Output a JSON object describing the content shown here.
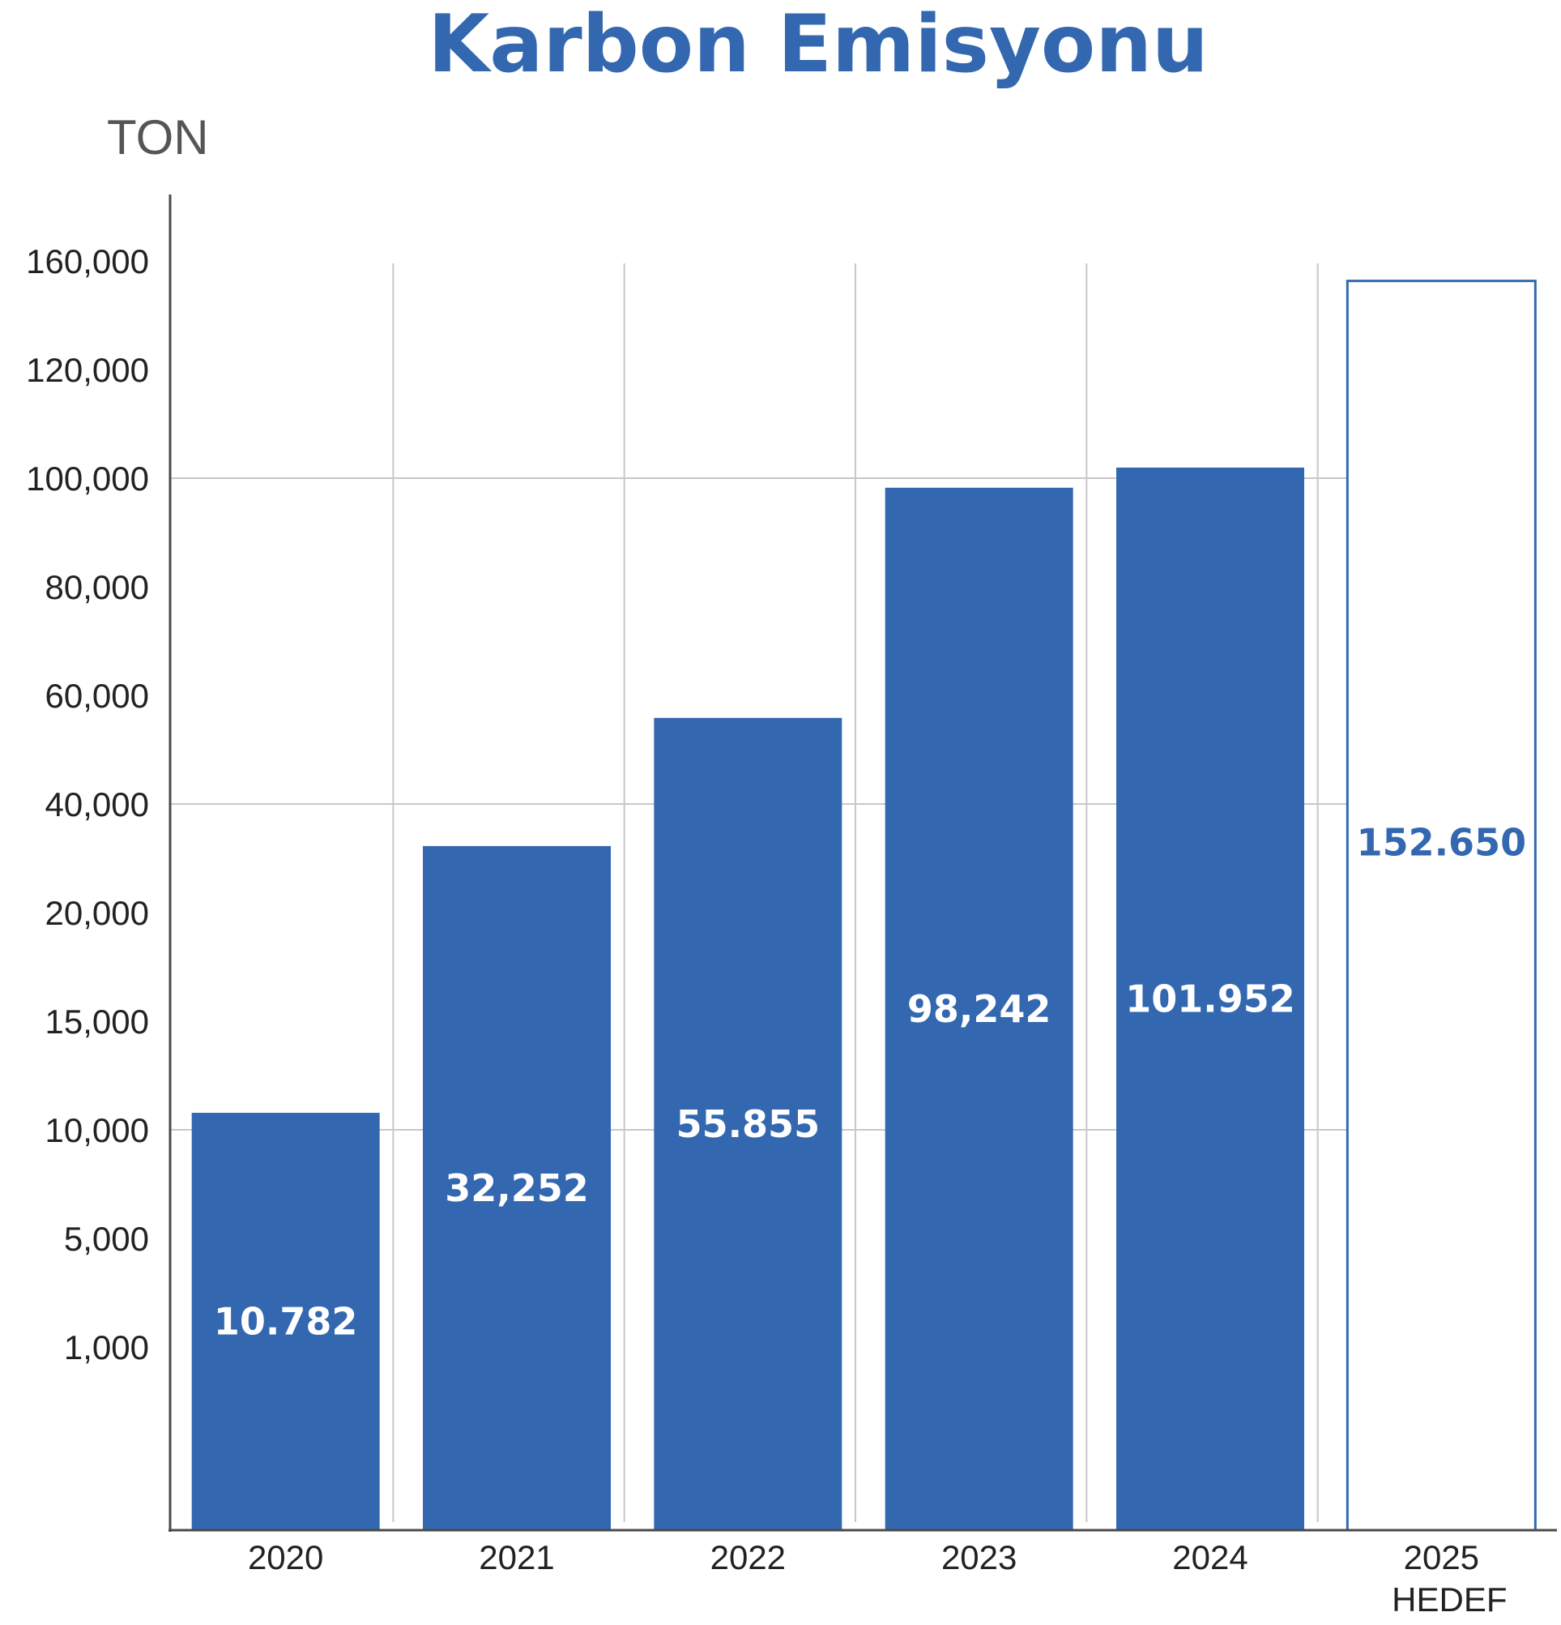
{
  "chart_data": {
    "type": "bar",
    "title": "Karbon Emisyonu",
    "ylabel": "TON",
    "y_ticks": [
      "160,000",
      "120,000",
      "100,000",
      "80,000",
      "60,000",
      "40,000",
      "20,000",
      "15,000",
      "10,000",
      "5,000",
      "1,000"
    ],
    "categories": [
      "2020",
      "2021",
      "2022",
      "2023",
      "2024",
      "2025"
    ],
    "category_sublabels": [
      "",
      "",
      "",
      "",
      "",
      "HEDEF"
    ],
    "values": [
      10782,
      32252,
      55855,
      98242,
      101952,
      152650
    ],
    "value_labels": [
      "10.782",
      "32,252",
      "55.855",
      "98,242",
      "101.952",
      "152.650"
    ],
    "bar_style": [
      "filled",
      "filled",
      "filled",
      "filled",
      "filled",
      "outline"
    ],
    "grid": true,
    "colors": {
      "bar": "#3368b0",
      "title": "#3368b0",
      "axis": "#4a4a4a",
      "grid": "#c8c8c8",
      "text": "#222222",
      "unit": "#555555"
    }
  }
}
